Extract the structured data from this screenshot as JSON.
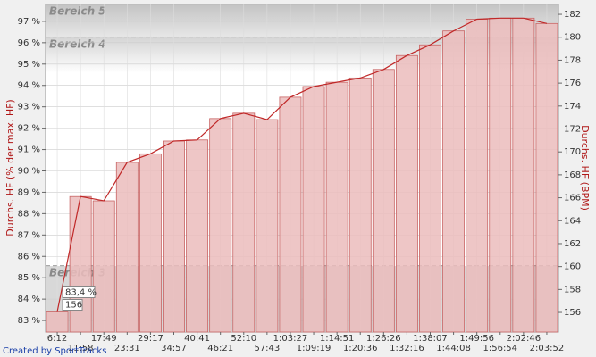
{
  "chart_data": {
    "type": "bar",
    "y_label": "Durchs. HF (% der max. HF)",
    "y2_label": "Durchs. HF (BPM)",
    "categories": [
      "6:12",
      "11:58",
      "17:49",
      "23:31",
      "29:17",
      "34:57",
      "40:41",
      "46:21",
      "52:10",
      "57:43",
      "1:03:27",
      "1:09:19",
      "1:14:51",
      "1:20:36",
      "1:26:26",
      "1:32:16",
      "1:38:07",
      "1:44:08",
      "1:49:56",
      "1:56:54",
      "2:02:46",
      "2:03:52"
    ],
    "values": [
      83.4,
      88.8,
      88.6,
      90.4,
      90.8,
      91.4,
      91.45,
      92.45,
      92.7,
      92.4,
      93.45,
      93.95,
      94.15,
      94.35,
      94.75,
      95.4,
      95.9,
      96.55,
      97.1,
      97.15,
      97.15,
      96.9
    ],
    "color": "#ebbcbc",
    "line_color": "#c02828",
    "ylim": [
      82.46,
      97.79
    ],
    "yticks": [
      {
        "value": 83,
        "label": "83 %"
      },
      {
        "value": 84,
        "label": "84 %"
      },
      {
        "value": 85,
        "label": "85 %"
      },
      {
        "value": 86,
        "label": "86 %"
      },
      {
        "value": 87,
        "label": "87 %"
      },
      {
        "value": 88,
        "label": "88 %"
      },
      {
        "value": 89,
        "label": "89 %"
      },
      {
        "value": 90,
        "label": "90 %"
      },
      {
        "value": 91,
        "label": "91 %"
      },
      {
        "value": 92,
        "label": "92 %"
      },
      {
        "value": 93,
        "label": "93 %"
      },
      {
        "value": 94,
        "label": "94 %"
      },
      {
        "value": 95,
        "label": "95 %"
      },
      {
        "value": 96,
        "label": "96 %"
      },
      {
        "value": 97,
        "label": "97 %"
      }
    ],
    "y2lim": [
      154.29,
      182.86
    ],
    "y2ticks": [
      156,
      158,
      160,
      162,
      164,
      166,
      168,
      170,
      172,
      174,
      176,
      178,
      180,
      182
    ],
    "grid": true,
    "zones": [
      {
        "label": "Bereich 5",
        "from": 96.25
      },
      {
        "label": "Bereich 4",
        "from": 85.55
      },
      {
        "label": "Bereich 3"
      }
    ],
    "tooltip": {
      "label": "83,4 %",
      "bpm": 156
    },
    "footer": "Created by SportTracks"
  }
}
